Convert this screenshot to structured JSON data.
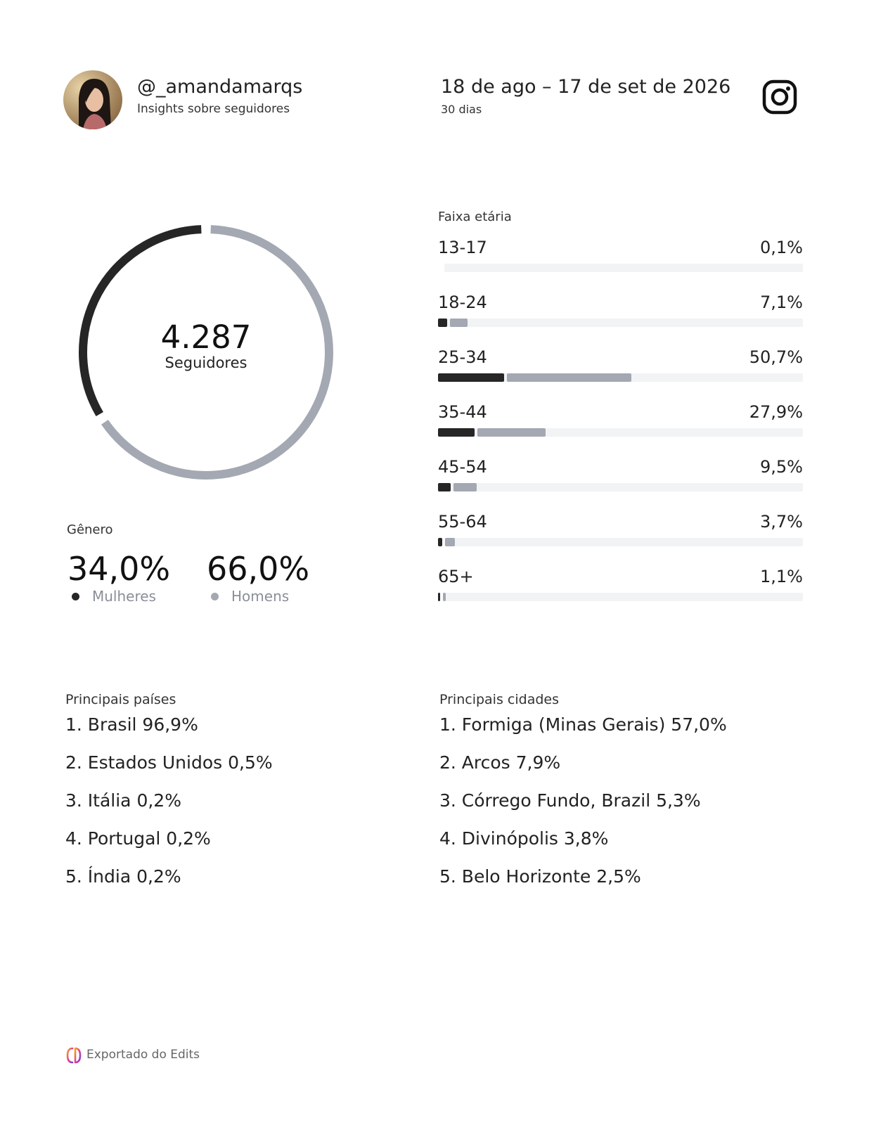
{
  "header": {
    "handle": "@_amandamarqs",
    "subtitle": "Insights sobre seguidores",
    "date_range": "18 de ago – 17 de set de 2026",
    "period": "30 dias",
    "logo_icon": "instagram-icon",
    "avatar_icon": "profile-photo"
  },
  "followers": {
    "total": "4.287",
    "label": "Seguidores"
  },
  "gender": {
    "title": "Gênero",
    "women": {
      "pct": "34,0%",
      "label": "Mulheres",
      "value": 34.0,
      "color": "#262626"
    },
    "men": {
      "pct": "66,0%",
      "label": "Homens",
      "value": 66.0,
      "color": "#a3a8b2"
    }
  },
  "age": {
    "title": "Faixa etária",
    "rows": [
      {
        "label": "13-17",
        "pct": "0,1%",
        "women": 0.0,
        "men": 0.0
      },
      {
        "label": "18-24",
        "pct": "7,1%",
        "women": 2.5,
        "men": 4.6
      },
      {
        "label": "25-34",
        "pct": "50,7%",
        "women": 17.5,
        "men": 33.2
      },
      {
        "label": "35-44",
        "pct": "27,9%",
        "women": 9.8,
        "men": 18.1
      },
      {
        "label": "45-54",
        "pct": "9,5%",
        "women": 3.4,
        "men": 6.1
      },
      {
        "label": "55-64",
        "pct": "3,7%",
        "women": 1.2,
        "men": 2.5
      },
      {
        "label": "65+",
        "pct": "1,1%",
        "women": 0.4,
        "men": 0.7
      }
    ]
  },
  "countries": {
    "title": "Principais países",
    "items": [
      "1. Brasil  96,9%",
      "2. Estados Unidos  0,5%",
      "3. Itália  0,2%",
      "4. Portugal  0,2%",
      "5. Índia  0,2%"
    ]
  },
  "cities": {
    "title": "Principais cidades",
    "items": [
      "1. Formiga (Minas Gerais)  57,0%",
      "2. Arcos  7,9%",
      "3. Córrego Fundo, Brazil  5,3%",
      "4. Divinópolis  3,8%",
      "5. Belo Horizonte  2,5%"
    ]
  },
  "footer": {
    "text": "Exportado do Edits",
    "logo_icon": "edits-logo-icon"
  }
}
